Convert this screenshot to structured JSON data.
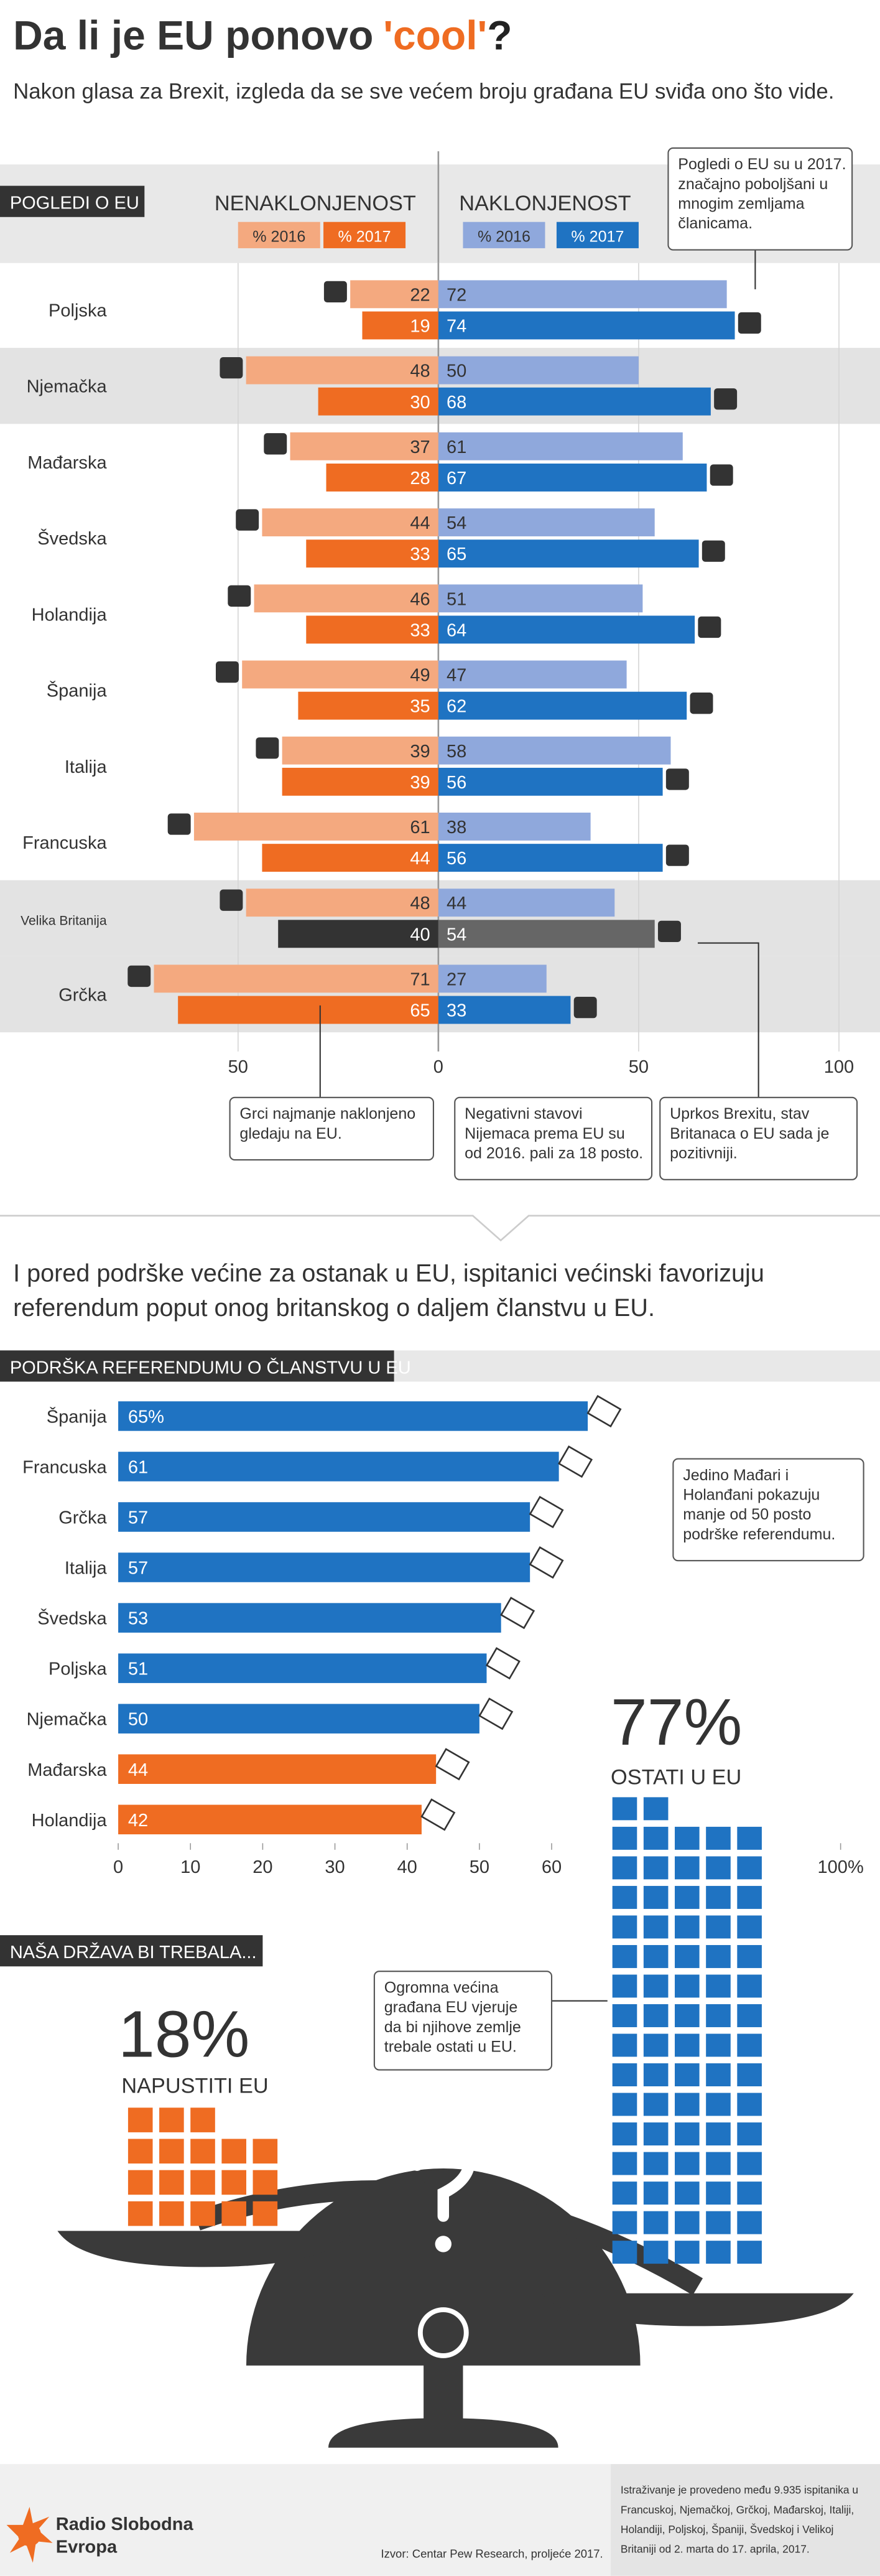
{
  "title": [
    "Da li je EU ponovo",
    "'cool'",
    "?"
  ],
  "subtitle": "Nakon glasa za Brexit, izgleda da se sve većem broju građana EU sviđa ono što vide.",
  "section_text": [
    "I pored podrške većine za ostanak u EU, ispitanici većinski favorizuju",
    "referendum poput onog britanskog o daljem članstvu u EU."
  ],
  "chart_data": [
    {
      "type": "diverging-bar",
      "title": "POGLEDI O EU",
      "categories": [
        "Poljska",
        "Njemačka",
        "Mađarska",
        "Švedska",
        "Holandija",
        "Španija",
        "Italija",
        "Francuska",
        "Velika Britanija",
        "Grčka"
      ],
      "groups": [
        {
          "name": "NENAKLONJENOST",
          "side": "left",
          "series": [
            {
              "name": "% 2016",
              "color": "#f4a97f",
              "values": [
                22,
                48,
                37,
                44,
                46,
                49,
                39,
                61,
                48,
                71
              ]
            },
            {
              "name": "% 2017",
              "color": "#ef6c22",
              "values": [
                19,
                30,
                28,
                33,
                33,
                35,
                39,
                44,
                40,
                65
              ],
              "colors": [
                "#ef6c22",
                "#ef6c22",
                "#ef6c22",
                "#ef6c22",
                "#ef6c22",
                "#ef6c22",
                "#ef6c22",
                "#ef6c22",
                "#333333",
                "#ef6c22"
              ]
            }
          ]
        },
        {
          "name": "NAKLONJENOST",
          "side": "right",
          "series": [
            {
              "name": "% 2016",
              "color": "#8fa8dc",
              "values": [
                72,
                50,
                61,
                54,
                51,
                47,
                58,
                38,
                44,
                27
              ]
            },
            {
              "name": "% 2017",
              "color": "#1f73c2",
              "values": [
                74,
                68,
                67,
                65,
                64,
                62,
                56,
                56,
                54,
                33
              ],
              "colors": [
                "#1f73c2",
                "#1f73c2",
                "#1f73c2",
                "#1f73c2",
                "#1f73c2",
                "#1f73c2",
                "#1f73c2",
                "#1f73c2",
                "#666666",
                "#1f73c2"
              ]
            }
          ]
        }
      ],
      "shaded_rows": [
        1,
        8,
        9
      ],
      "xlim": [
        -100,
        100
      ],
      "xticks": [
        {
          "value": -50,
          "label": "50"
        },
        0,
        50,
        100
      ],
      "annotations": [
        {
          "lines": [
            "Pogledi o EU su u 2017.",
            "značajno poboljšani u",
            "mnogim zemljama",
            "članicama."
          ]
        },
        {
          "lines": [
            "Grci najmanje naklonjeno",
            "gledaju na EU."
          ]
        },
        {
          "lines": [
            "Negativni stavovi",
            "Nijemaca prema EU su",
            "od 2016. pali za 18 posto."
          ]
        },
        {
          "lines": [
            "Uprkos Brexitu, stav",
            "Britanaca o EU sada je",
            "pozitivniji."
          ]
        }
      ]
    },
    {
      "type": "bar",
      "title": "PODRŠKA REFERENDUMU O ČLANSTVU U EU",
      "categories": [
        "Španija",
        "Francuska",
        "Grčka",
        "Italija",
        "Švedska",
        "Poljska",
        "Njemačka",
        "Mađarska",
        "Holandija"
      ],
      "values": [
        65,
        61,
        57,
        57,
        53,
        51,
        50,
        44,
        42
      ],
      "value_labels": [
        "65%",
        "61",
        "57",
        "57",
        "53",
        "51",
        "50",
        "44",
        "42"
      ],
      "colors": [
        "#1f73c2",
        "#1f73c2",
        "#1f73c2",
        "#1f73c2",
        "#1f73c2",
        "#1f73c2",
        "#1f73c2",
        "#ef6c22",
        "#ef6c22"
      ],
      "xlim": [
        0,
        100
      ],
      "xticks": [
        0,
        10,
        20,
        30,
        40,
        50,
        60,
        {
          "value": 100,
          "label": "100%"
        }
      ],
      "annotations": [
        {
          "lines": [
            "Jedino Mađari i",
            "Holanđani pokazuju",
            "manje od 50 posto",
            "podrške referendumu."
          ]
        }
      ]
    },
    {
      "type": "waffle",
      "title": "NAŠA DRŽAVA BI TREBALA...",
      "categories": [
        "OSTATI U EU",
        "NAPUSTITI EU"
      ],
      "values": [
        77,
        18
      ],
      "value_labels": [
        "77%",
        "18%"
      ],
      "colors": [
        "#1f73c2",
        "#ef6c22"
      ],
      "annotations": [
        {
          "lines": [
            "Ogromna većina",
            "građana EU vjeruje",
            "da bi njihove zemlje",
            "trebale ostati u EU."
          ]
        }
      ]
    }
  ],
  "footer": {
    "brand": [
      "Radio Slobodna",
      "Evropa"
    ],
    "source": "Izvor: Centar Pew Research, proljeće 2017.",
    "note": [
      "Istraživanje je provedeno među 9.935 ispitanika u",
      "Francuskoj, Njemačkoj, Grčkoj, Mađarskoj, Italiji,",
      "Holandiji, Poljskoj, Španiji, Švedskoj i Velikoj",
      "Britaniji od 2. marta do 17. aprila, 2017."
    ]
  }
}
